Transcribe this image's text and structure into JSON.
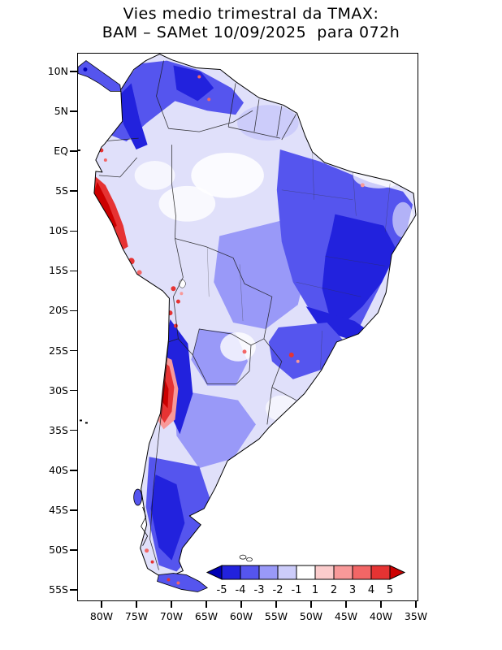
{
  "title": {
    "line1": "Vies medio trimestral da TMAX:",
    "line2": "BAM – SAMet 10/09/2025  para 072h"
  },
  "map": {
    "base_fill": "#E0E0FA",
    "y_ticks": [
      "10N",
      "5N",
      "EQ",
      "5S",
      "10S",
      "15S",
      "20S",
      "25S",
      "30S",
      "35S",
      "40S",
      "45S",
      "50S",
      "55S"
    ],
    "x_ticks": [
      "80W",
      "75W",
      "70W",
      "65W",
      "60W",
      "55W",
      "50W",
      "45W",
      "40W",
      "35W"
    ]
  },
  "colorbar": {
    "labels": [
      "-5",
      "-4",
      "-3",
      "-2",
      "-1",
      "1",
      "2",
      "3",
      "4",
      "5"
    ],
    "colors": [
      "#0000B4",
      "#2222DD",
      "#5555EE",
      "#9999F8",
      "#CCCCFA",
      "#FFFFFF",
      "#FBCCCC",
      "#F89999",
      "#F26666",
      "#E63333",
      "#CC0000"
    ]
  },
  "chart_data": {
    "type": "heatmap",
    "title": "Vies medio trimestral da TMAX: BAM – SAMet 10/09/2025 para 072h",
    "region": "South America",
    "lat_ticks": [
      "10N",
      "5N",
      "EQ",
      "5S",
      "10S",
      "15S",
      "20S",
      "25S",
      "30S",
      "35S",
      "40S",
      "45S",
      "50S",
      "55S"
    ],
    "lon_ticks": [
      "80W",
      "75W",
      "70W",
      "65W",
      "60W",
      "55W",
      "50W",
      "45W",
      "40W",
      "35W"
    ],
    "colorbar": {
      "boundaries": [
        -5,
        -4,
        -3,
        -2,
        -1,
        1,
        2,
        3,
        4,
        5
      ],
      "colors": [
        "#0000B4",
        "#2222DD",
        "#5555EE",
        "#9999F8",
        "#CCCCFA",
        "#FFFFFF",
        "#FBCCCC",
        "#F89999",
        "#F26666",
        "#E63333",
        "#CC0000"
      ]
    },
    "features": [
      "Predominantly negative bias (blue shades, -1 to -5) over most of the continent",
      "Strongest negative bias over eastern/northeastern Brazil, Colombia-Venezuela Andes, NW Argentina and Patagonia",
      "Weak bias (white / pale lavender) over western Amazon, the Guianas, Paraguay and Uruguay",
      "Strong positive bias (red) along the Peruvian coastal strip (about 5S-17S) and the central Chilean Andes (about 27S-35S)",
      "Scattered positive spots over the Bolivian Altiplano, Ecuador coast, southern Brazil and far-southern Patagonia"
    ]
  }
}
